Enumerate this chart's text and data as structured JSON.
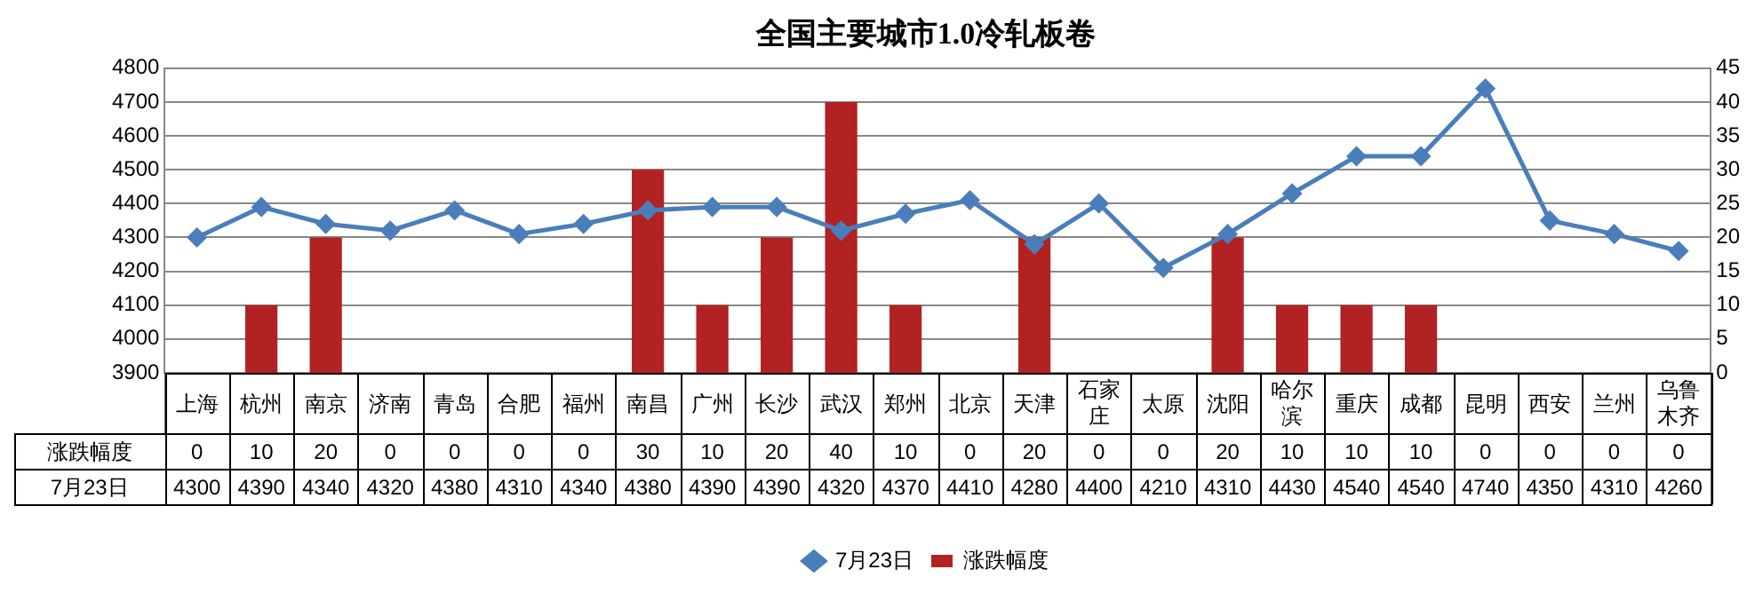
{
  "chart_data": {
    "type": "bar",
    "title": "全国主要城市1.0冷轧板卷",
    "categories": [
      "上海",
      "杭州",
      "南京",
      "济南",
      "青岛",
      "合肥",
      "福州",
      "南昌",
      "广州",
      "长沙",
      "武汉",
      "郑州",
      "北京",
      "天津",
      "石家庄",
      "太原",
      "沈阳",
      "哈尔滨",
      "重庆",
      "成都",
      "昆明",
      "西安",
      "兰州",
      "乌鲁木齐"
    ],
    "series": [
      {
        "name": "涨跌幅度",
        "axis": "y2",
        "color": "#b22222",
        "values": [
          0,
          10,
          20,
          0,
          0,
          0,
          0,
          30,
          10,
          20,
          40,
          10,
          0,
          20,
          0,
          0,
          20,
          10,
          10,
          10,
          0,
          0,
          0,
          0
        ]
      },
      {
        "name": "7月23日",
        "type": "line",
        "color": "#4a7ebb",
        "values": [
          4300,
          4390,
          4340,
          4320,
          4380,
          4310,
          4340,
          4380,
          4390,
          4390,
          4320,
          4370,
          4410,
          4280,
          4400,
          4210,
          4310,
          4430,
          4540,
          4540,
          4740,
          4350,
          4310,
          4260
        ]
      }
    ],
    "ylim": [
      3900,
      4800
    ],
    "yticks": [
      3900,
      4000,
      4100,
      4200,
      4300,
      4400,
      4500,
      4600,
      4700,
      4800
    ],
    "y2lim": [
      0,
      45
    ],
    "y2ticks": [
      0,
      5,
      10,
      15,
      20,
      25,
      30,
      35,
      40,
      45
    ],
    "grid": "y",
    "legend": "bottom",
    "marker": "diamond",
    "line_style": "solid",
    "data_labels": true
  }
}
